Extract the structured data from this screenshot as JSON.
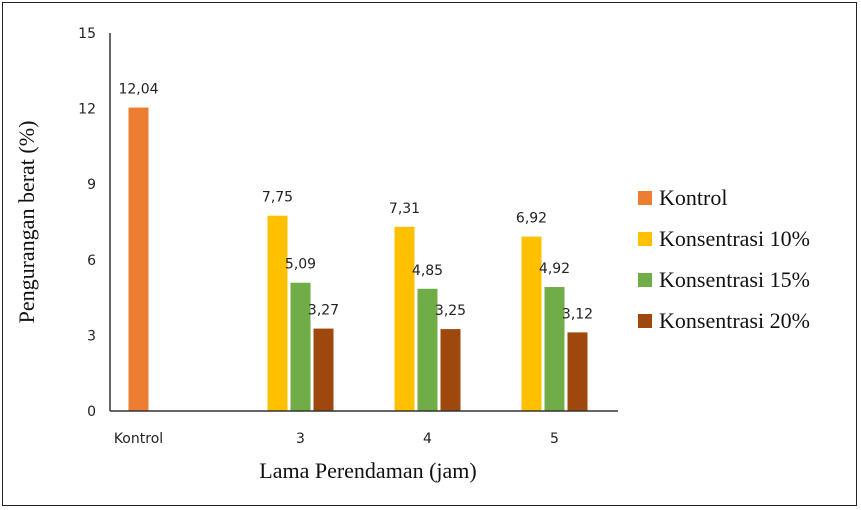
{
  "chart_data": {
    "type": "bar",
    "categories": [
      "Kontrol",
      "3",
      "4",
      "5"
    ],
    "series": [
      {
        "name": "Kontrol",
        "color": "#ED7D31",
        "values": [
          12.04,
          null,
          null,
          null
        ],
        "labels": [
          "12,04",
          "",
          "",
          ""
        ]
      },
      {
        "name": "Konsentrasi 10%",
        "color": "#FFC000",
        "values": [
          null,
          7.75,
          7.31,
          6.92
        ],
        "labels": [
          "",
          "7,75",
          "7,31",
          "6,92"
        ]
      },
      {
        "name": "Konsentrasi 15%",
        "color": "#70AD47",
        "values": [
          null,
          5.09,
          4.85,
          4.92
        ],
        "labels": [
          "",
          "5,09",
          "4,85",
          "4,92"
        ]
      },
      {
        "name": "Konsentrasi 20%",
        "color": "#9E480E",
        "values": [
          null,
          3.27,
          3.25,
          3.12
        ],
        "labels": [
          "",
          "3,27",
          "3,25",
          "3,12"
        ]
      }
    ],
    "xlabel": "Lama Perendaman (jam)",
    "ylabel": "Pengurangan berat (%)",
    "ylim": [
      0,
      15
    ],
    "yticks": [
      0,
      3,
      6,
      9,
      12,
      15
    ],
    "grid": false,
    "legend": "right"
  }
}
